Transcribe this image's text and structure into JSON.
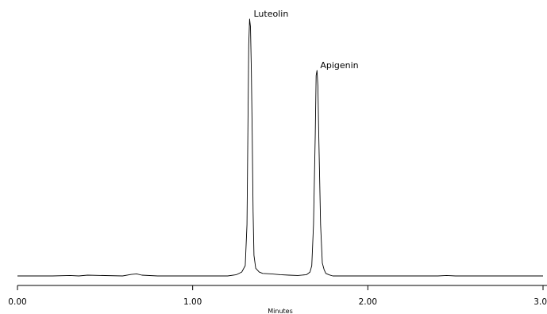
{
  "chart_data": {
    "type": "line",
    "xlabel": "Minutes",
    "ylabel": "",
    "title": "",
    "xlim": [
      0.0,
      3.0
    ],
    "ylim": [
      0,
      100
    ],
    "grid": false,
    "x_ticks": [
      {
        "value": 0.0,
        "label": "0.00"
      },
      {
        "value": 1.0,
        "label": "1.00"
      },
      {
        "value": 2.0,
        "label": "2.00"
      },
      {
        "value": 3.0,
        "label": "3.00"
      }
    ],
    "annotations": [
      {
        "text": "Luteolin",
        "x": 1.33,
        "y": 100
      },
      {
        "text": "Apigenin",
        "x": 1.71,
        "y": 80
      }
    ],
    "series": [
      {
        "x": [
          0.0,
          0.2,
          0.3,
          0.35,
          0.4,
          0.6,
          0.65,
          0.68,
          0.71,
          0.8,
          1.0,
          1.2,
          1.25,
          1.28,
          1.3,
          1.31,
          1.315,
          1.32,
          1.325,
          1.33,
          1.335,
          1.34,
          1.345,
          1.35,
          1.36,
          1.38,
          1.4,
          1.45,
          1.5,
          1.55,
          1.6,
          1.65,
          1.67,
          1.68,
          1.69,
          1.7,
          1.705,
          1.71,
          1.715,
          1.72,
          1.73,
          1.74,
          1.75,
          1.76,
          1.78,
          1.8,
          2.0,
          2.4,
          2.45,
          2.5,
          2.8,
          3.0
        ],
        "y": [
          0,
          0,
          0.2,
          0,
          0.3,
          0,
          0.6,
          0.8,
          0.3,
          0,
          0,
          0,
          0.5,
          1.5,
          4,
          20,
          55,
          90,
          100,
          97,
          80,
          55,
          25,
          8,
          3,
          1.5,
          1,
          0.8,
          0.5,
          0.3,
          0.2,
          0.5,
          1.5,
          4,
          20,
          55,
          78,
          80,
          74,
          55,
          20,
          5,
          2.5,
          1,
          0.4,
          0,
          0,
          0,
          0.2,
          0,
          0,
          0
        ]
      }
    ]
  }
}
